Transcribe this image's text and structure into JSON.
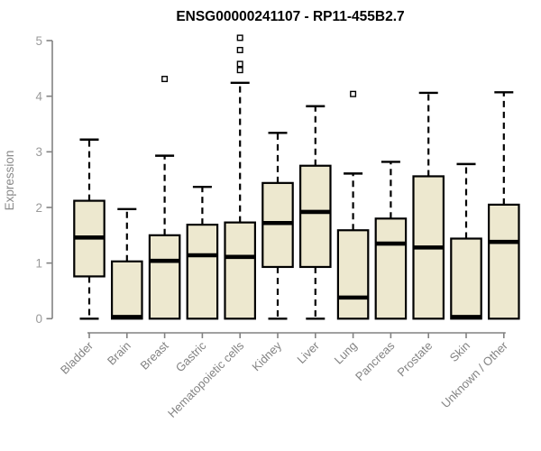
{
  "chart_data": {
    "type": "boxplot",
    "title": "ENSG00000241107 - RP11-455B2.7",
    "ylabel": "Expression",
    "xlabel": "",
    "ylim": [
      0,
      5
    ],
    "yticks": [
      0,
      1,
      2,
      3,
      4,
      5
    ],
    "grid": false,
    "legend": "none",
    "categories": [
      "Bladder",
      "Brain",
      "Breast",
      "Gastric",
      "Hematopoietic cells",
      "Kidney",
      "Liver",
      "Lung",
      "Pancreas",
      "Prostate",
      "Skin",
      "Unknown / Other"
    ],
    "series": [
      {
        "name": "Bladder",
        "min": 0,
        "q1": 0.76,
        "median": 1.46,
        "q3": 2.12,
        "max": 3.22,
        "outliers": []
      },
      {
        "name": "Brain",
        "min": 0,
        "q1": 0,
        "median": 0.03,
        "q3": 1.03,
        "max": 1.97,
        "outliers": []
      },
      {
        "name": "Breast",
        "min": 0,
        "q1": 0,
        "median": 1.04,
        "q3": 1.5,
        "max": 2.93,
        "outliers": [
          4.31
        ]
      },
      {
        "name": "Gastric",
        "min": 0,
        "q1": 0,
        "median": 1.14,
        "q3": 1.69,
        "max": 2.37,
        "outliers": []
      },
      {
        "name": "Hematopoietic cells",
        "min": 0,
        "q1": 0,
        "median": 1.11,
        "q3": 1.73,
        "max": 4.24,
        "outliers": [
          4.47,
          4.58,
          4.83,
          5.05
        ]
      },
      {
        "name": "Kidney",
        "min": 0,
        "q1": 0.93,
        "median": 1.72,
        "q3": 2.44,
        "max": 3.34,
        "outliers": []
      },
      {
        "name": "Liver",
        "min": 0,
        "q1": 0.93,
        "median": 1.92,
        "q3": 2.75,
        "max": 3.82,
        "outliers": []
      },
      {
        "name": "Lung",
        "min": 0,
        "q1": 0,
        "median": 0.38,
        "q3": 1.59,
        "max": 2.61,
        "outliers": [
          4.04
        ]
      },
      {
        "name": "Pancreas",
        "min": 0,
        "q1": 0,
        "median": 1.35,
        "q3": 1.8,
        "max": 2.82,
        "outliers": []
      },
      {
        "name": "Prostate",
        "min": 0,
        "q1": 0,
        "median": 1.28,
        "q3": 2.56,
        "max": 4.06,
        "outliers": []
      },
      {
        "name": "Skin",
        "min": 0,
        "q1": 0,
        "median": 0.03,
        "q3": 1.44,
        "max": 2.78,
        "outliers": []
      },
      {
        "name": "Unknown / Other",
        "min": 0,
        "q1": 0,
        "median": 1.38,
        "q3": 2.05,
        "max": 4.07,
        "outliers": []
      }
    ],
    "colors": {
      "box_fill": "#EDE8CF",
      "box_border": "#000000",
      "median": "#000000",
      "whisker": "#000000",
      "outlier_fill": "#FFFFFF",
      "outlier_border": "#000000",
      "axis": "#828282",
      "tick_label": "#9A9A9A",
      "category_label": "#838383",
      "title": "#000000"
    }
  }
}
